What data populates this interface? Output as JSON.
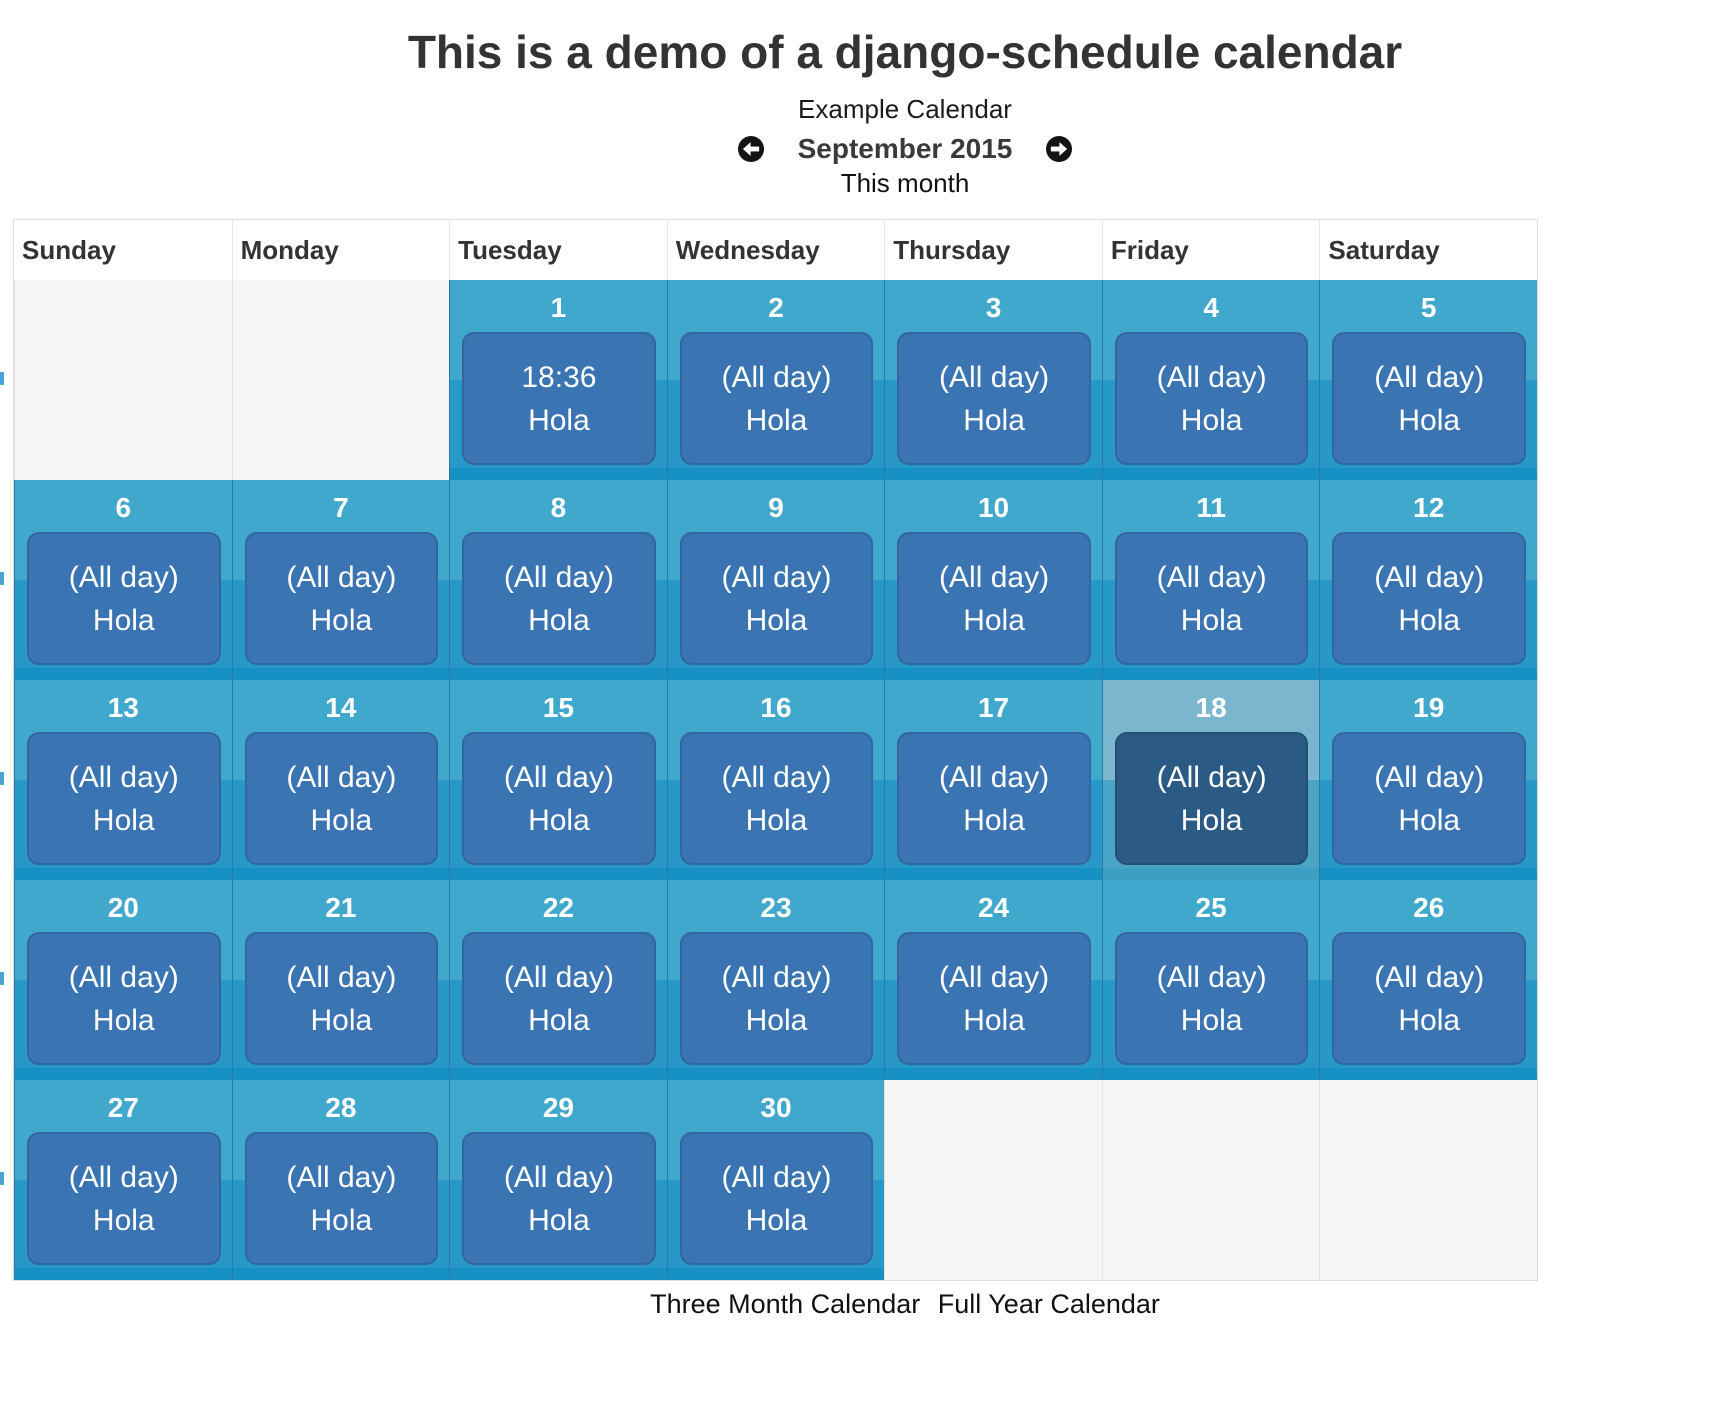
{
  "page_title": "This is a demo of a django-schedule calendar",
  "nav": {
    "calendar_name": "Example Calendar",
    "month_label": "September 2015",
    "this_month_label": "This month",
    "prev_icon": "arrow-circle-left",
    "next_icon": "arrow-circle-right"
  },
  "weekday_headers": [
    "Sunday",
    "Monday",
    "Tuesday",
    "Wednesday",
    "Thursday",
    "Friday",
    "Saturday"
  ],
  "weeks": [
    [
      {
        "empty": true
      },
      {
        "empty": true
      },
      {
        "day": "1",
        "event_time": "18:36",
        "event_title": "Hola"
      },
      {
        "day": "2",
        "event_time": "(All day)",
        "event_title": "Hola"
      },
      {
        "day": "3",
        "event_time": "(All day)",
        "event_title": "Hola"
      },
      {
        "day": "4",
        "event_time": "(All day)",
        "event_title": "Hola"
      },
      {
        "day": "5",
        "event_time": "(All day)",
        "event_title": "Hola"
      }
    ],
    [
      {
        "day": "6",
        "event_time": "(All day)",
        "event_title": "Hola"
      },
      {
        "day": "7",
        "event_time": "(All day)",
        "event_title": "Hola"
      },
      {
        "day": "8",
        "event_time": "(All day)",
        "event_title": "Hola"
      },
      {
        "day": "9",
        "event_time": "(All day)",
        "event_title": "Hola"
      },
      {
        "day": "10",
        "event_time": "(All day)",
        "event_title": "Hola"
      },
      {
        "day": "11",
        "event_time": "(All day)",
        "event_title": "Hola"
      },
      {
        "day": "12",
        "event_time": "(All day)",
        "event_title": "Hola"
      }
    ],
    [
      {
        "day": "13",
        "event_time": "(All day)",
        "event_title": "Hola"
      },
      {
        "day": "14",
        "event_time": "(All day)",
        "event_title": "Hola"
      },
      {
        "day": "15",
        "event_time": "(All day)",
        "event_title": "Hola"
      },
      {
        "day": "16",
        "event_time": "(All day)",
        "event_title": "Hola"
      },
      {
        "day": "17",
        "event_time": "(All day)",
        "event_title": "Hola"
      },
      {
        "day": "18",
        "event_time": "(All day)",
        "event_title": "Hola",
        "today": true
      },
      {
        "day": "19",
        "event_time": "(All day)",
        "event_title": "Hola"
      }
    ],
    [
      {
        "day": "20",
        "event_time": "(All day)",
        "event_title": "Hola"
      },
      {
        "day": "21",
        "event_time": "(All day)",
        "event_title": "Hola"
      },
      {
        "day": "22",
        "event_time": "(All day)",
        "event_title": "Hola"
      },
      {
        "day": "23",
        "event_time": "(All day)",
        "event_title": "Hola"
      },
      {
        "day": "24",
        "event_time": "(All day)",
        "event_title": "Hola"
      },
      {
        "day": "25",
        "event_time": "(All day)",
        "event_title": "Hola"
      },
      {
        "day": "26",
        "event_time": "(All day)",
        "event_title": "Hola"
      }
    ],
    [
      {
        "day": "27",
        "event_time": "(All day)",
        "event_title": "Hola"
      },
      {
        "day": "28",
        "event_time": "(All day)",
        "event_title": "Hola"
      },
      {
        "day": "29",
        "event_time": "(All day)",
        "event_title": "Hola"
      },
      {
        "day": "30",
        "event_time": "(All day)",
        "event_title": "Hola"
      },
      {
        "empty": true
      },
      {
        "empty": true
      },
      {
        "empty": true
      }
    ]
  ],
  "footer_links": [
    "Three Month Calendar",
    "Full Year Calendar"
  ],
  "colors": {
    "cell_top": "#40a8cc",
    "cell_bottom": "#2798c7",
    "cell_strip": "#1791c4",
    "event_fill": "#3a74b2",
    "event_border": "#33669f",
    "today_cell_top": "#7ab7cf",
    "today_cell_bottom": "#4aa4c5",
    "today_strip": "#3c9fc3",
    "today_event_fill": "#2b5b84",
    "today_event_border": "#24506f",
    "empty_cell": "#f5f5f5",
    "arrow_button": "#141414"
  }
}
